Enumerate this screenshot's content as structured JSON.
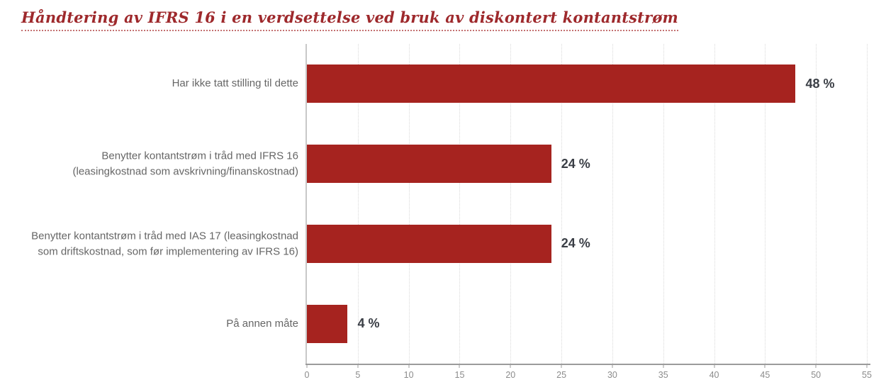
{
  "title": "Håndtering av IFRS 16 i en verdsettelse ved bruk av diskontert kontantstrøm",
  "colors": {
    "bar": "#A6231F",
    "title": "#9E292C",
    "category_label": "#666666",
    "value_label": "#3A3E45",
    "tick_label": "#8C8C8C",
    "axis_y": "#C8C8C8",
    "axis_x": "#9B9B9B",
    "gridline": "#D9D9D9",
    "underline": "#C47272",
    "background": "#FFFFFF"
  },
  "chart_data": {
    "type": "bar",
    "orientation": "horizontal",
    "title": "Håndtering av IFRS 16 i en verdsettelse ved bruk av diskontert kontantstrøm",
    "categories": [
      "Har ikke tatt stilling til dette",
      "Benytter kontantstrøm i tråd med IFRS 16\n(leasingkostnad som avskrivning/finanskostnad)",
      "Benytter kontantstrøm i tråd med IAS 17 (leasingkostnad\nsom driftskostnad, som før implementering av IFRS 16)",
      "På annen måte"
    ],
    "values": [
      48,
      24,
      24,
      4
    ],
    "value_labels": [
      "48 %",
      "24 %",
      "24 %",
      "4 %"
    ],
    "xlabel": "",
    "ylabel": "",
    "xlim": [
      0,
      55
    ],
    "xticks": [
      0,
      5,
      10,
      15,
      20,
      25,
      30,
      35,
      40,
      45,
      50,
      55
    ],
    "grid": "vertical-dotted",
    "legend": "none"
  }
}
